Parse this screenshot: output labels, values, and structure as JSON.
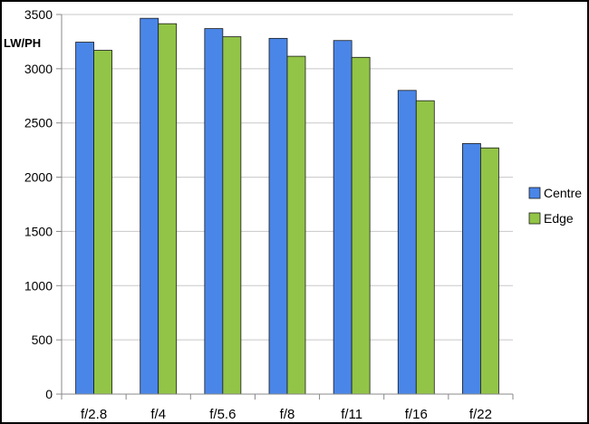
{
  "chart_data": {
    "type": "bar",
    "title": "",
    "xlabel": "",
    "ylabel": "LW/PH",
    "categories": [
      "f/2.8",
      "f/4",
      "f/5.6",
      "f/8",
      "f/11",
      "f/16",
      "f/22"
    ],
    "series": [
      {
        "name": "Centre",
        "color": "#4a86e8",
        "values": [
          3245,
          3465,
          3370,
          3280,
          3260,
          2800,
          2310
        ]
      },
      {
        "name": "Edge",
        "color": "#92c447",
        "values": [
          3170,
          3415,
          3295,
          3115,
          3105,
          2705,
          2270
        ]
      }
    ],
    "ylim": [
      0,
      3500
    ],
    "yticks": [
      0,
      500,
      1000,
      1500,
      2000,
      2500,
      3000,
      3500
    ],
    "grid": true,
    "legend": "right"
  }
}
